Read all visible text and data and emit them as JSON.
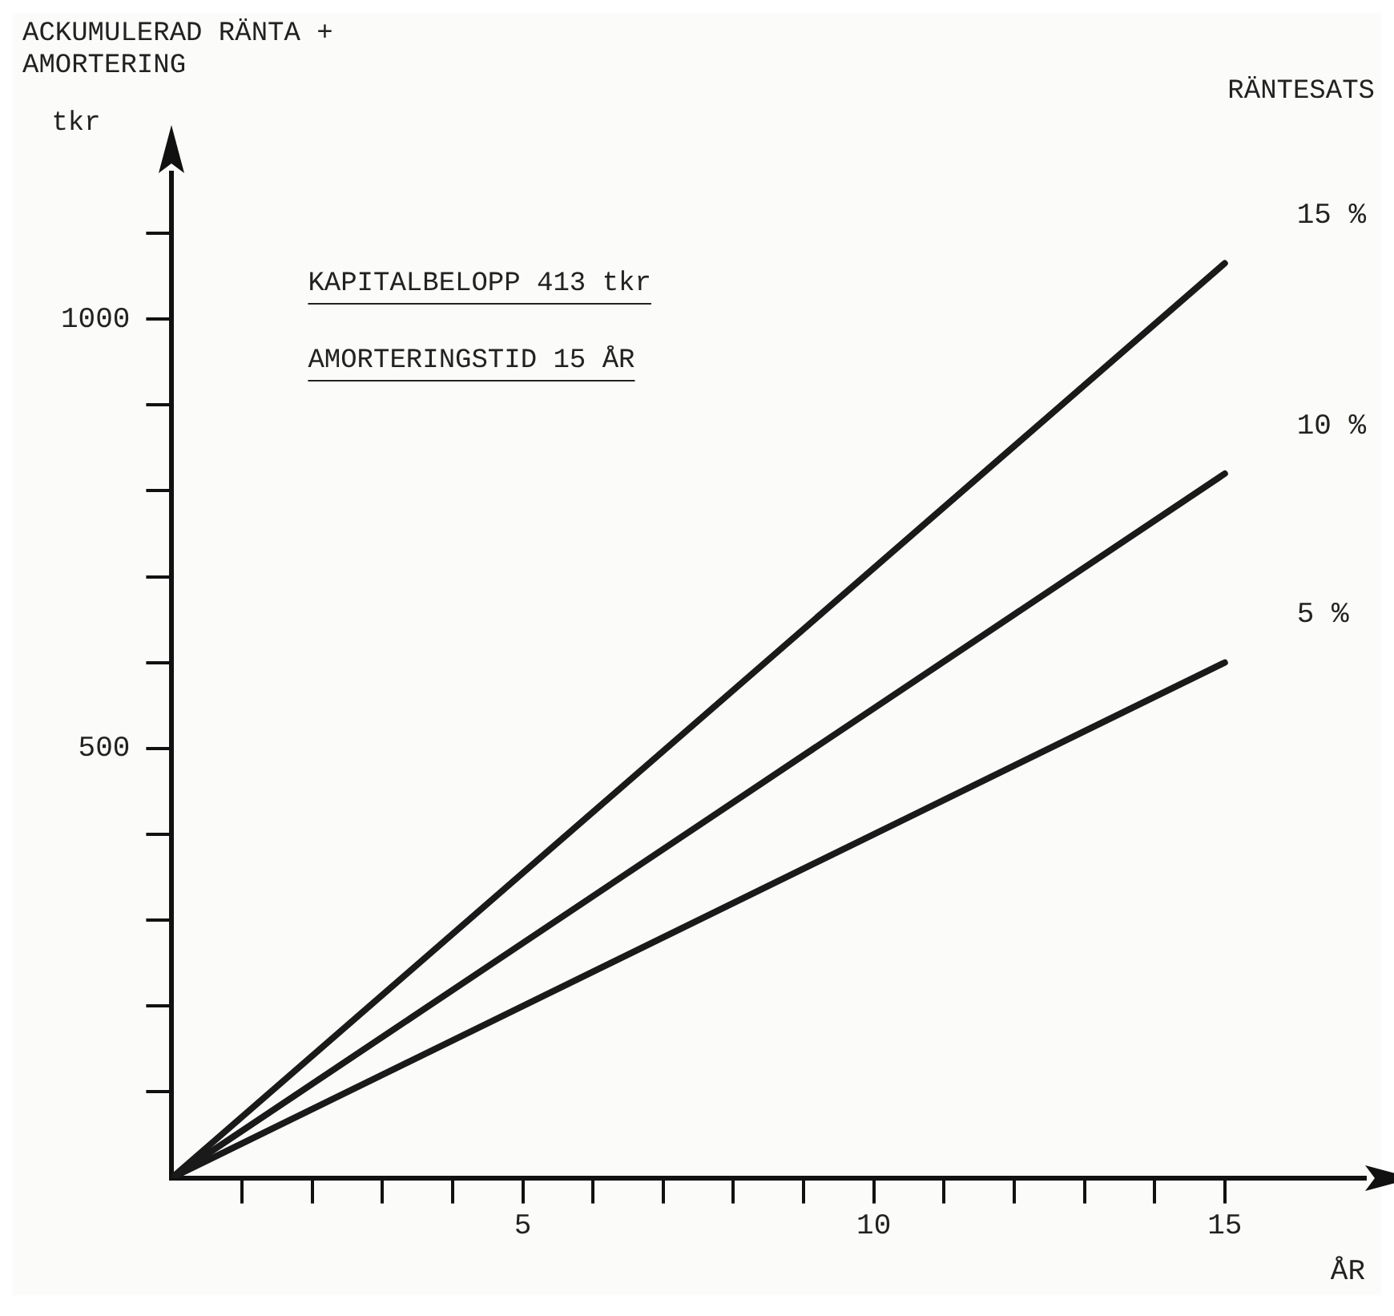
{
  "chart_data": {
    "type": "line",
    "ylabel": "ACKUMULERAD RÄNTA + AMORTERING",
    "xlabel": "ÅR",
    "legend_title": "RÄNTESATS",
    "annotations": [
      "tkr",
      "KAPITALBELOPP 413 tkr",
      "AMORTERINGSTID 15 ÅR"
    ],
    "x": [
      0,
      15
    ],
    "series": [
      {
        "name": "15 %",
        "color": "#1a1a1a",
        "values": [
          0,
          1065
        ]
      },
      {
        "name": "10 %",
        "color": "#1a1a1a",
        "values": [
          0,
          820
        ]
      },
      {
        "name": "5 %",
        "color": "#1a1a1a",
        "values": [
          0,
          600
        ]
      }
    ],
    "xlim": [
      0,
      17
    ],
    "ylim": [
      0,
      1170
    ],
    "xticks": [
      {
        "value": 1,
        "label": null
      },
      {
        "value": 2,
        "label": null
      },
      {
        "value": 3,
        "label": null
      },
      {
        "value": 4,
        "label": null
      },
      5,
      {
        "value": 6,
        "label": null
      },
      {
        "value": 7,
        "label": null
      },
      {
        "value": 8,
        "label": null
      },
      {
        "value": 9,
        "label": null
      },
      10,
      {
        "value": 11,
        "label": null
      },
      {
        "value": 12,
        "label": null
      },
      {
        "value": 13,
        "label": null
      },
      {
        "value": 14,
        "label": null
      },
      15
    ],
    "yticks": [
      {
        "value": 100,
        "label": null
      },
      {
        "value": 200,
        "label": null
      },
      {
        "value": 300,
        "label": null
      },
      {
        "value": 400,
        "label": null
      },
      500,
      {
        "value": 600,
        "label": null
      },
      {
        "value": 700,
        "label": null
      },
      {
        "value": 800,
        "label": null
      },
      {
        "value": 900,
        "label": null
      },
      1000,
      {
        "value": 1100,
        "label": null
      }
    ]
  }
}
